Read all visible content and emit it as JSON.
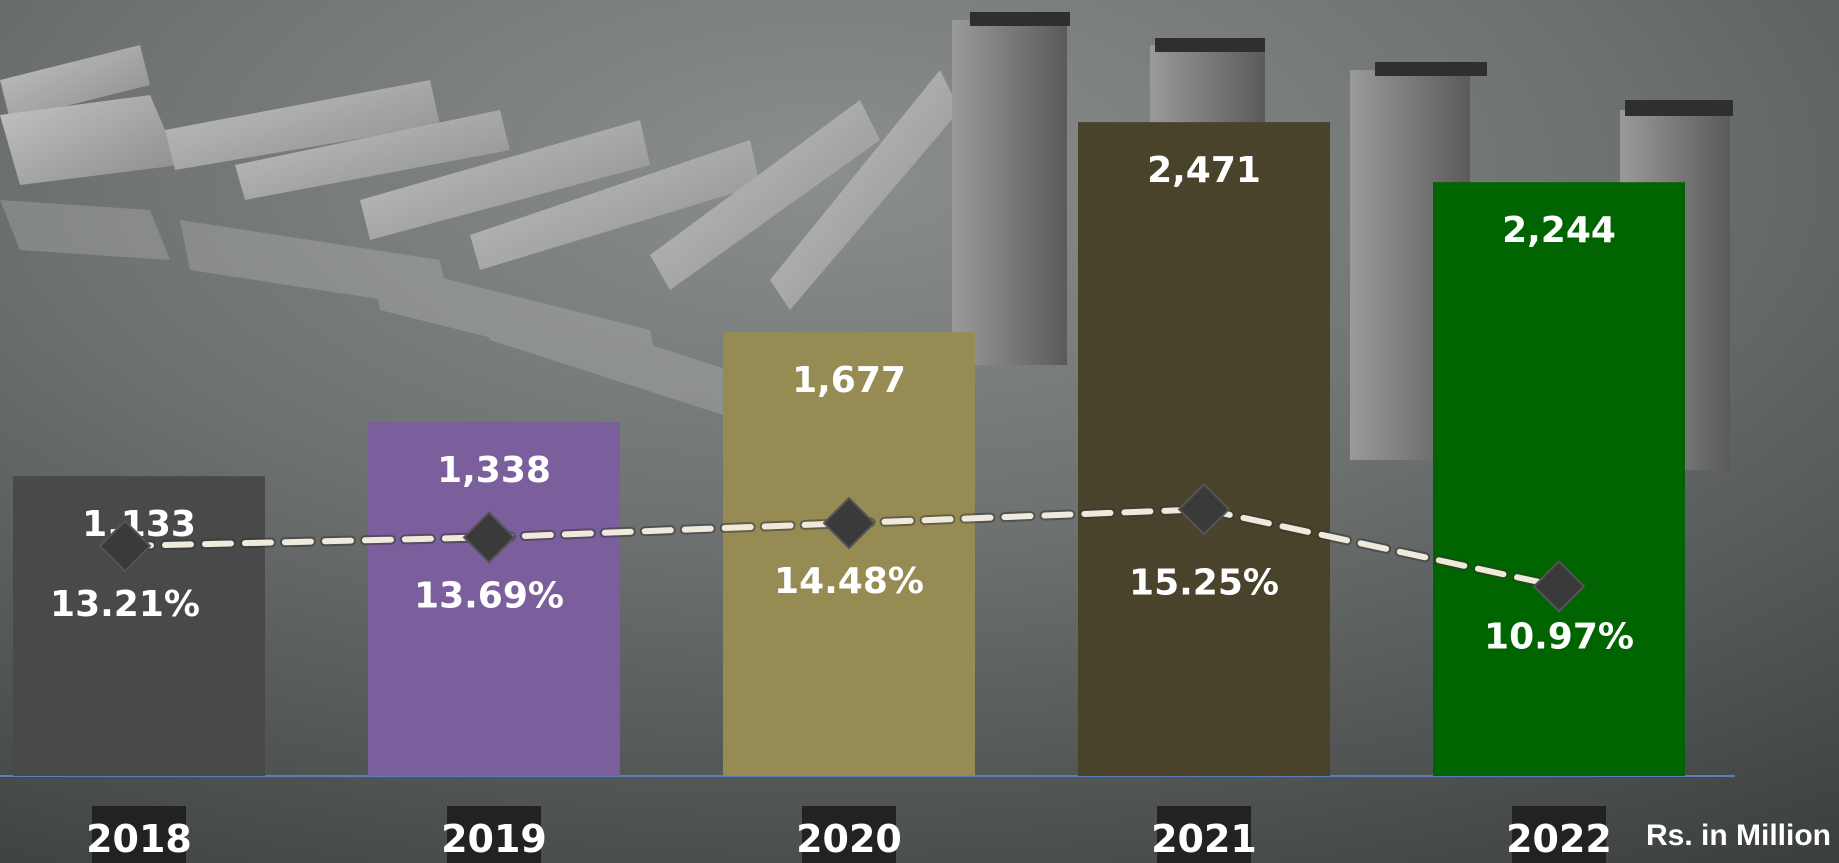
{
  "chart_data": {
    "type": "bar",
    "categories": [
      "2018",
      "2019",
      "2020",
      "2021",
      "2022"
    ],
    "values": [
      1133,
      1338,
      1677,
      2471,
      2244
    ],
    "value_labels": [
      "1,133",
      "1,338",
      "1,677",
      "2,471",
      "2,244"
    ],
    "bar_colors": [
      "#494949",
      "#7b5e9c",
      "#978b54",
      "#4a432b",
      "#006400"
    ],
    "line_series": {
      "type": "line",
      "values": [
        13.21,
        13.69,
        14.48,
        15.25,
        10.97
      ],
      "labels": [
        "13.21%",
        "13.69%",
        "14.48%",
        "15.25%",
        "10.97%"
      ],
      "line_color": "#efeadc",
      "marker_color": "#3a3a3a",
      "marker": "diamond",
      "dashed": true
    },
    "unit_note": "Rs. in Million",
    "ylim": [
      0,
      2600
    ],
    "grid": false,
    "title": "",
    "xlabel": "",
    "ylabel": ""
  }
}
